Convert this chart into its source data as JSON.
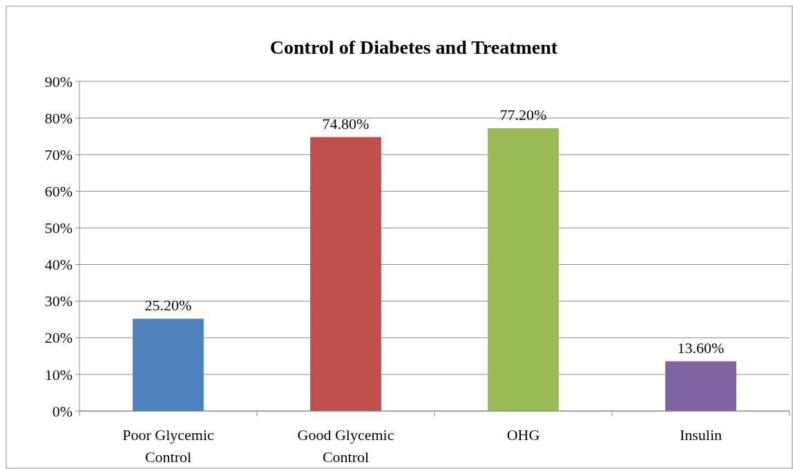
{
  "chart_data": {
    "type": "bar",
    "title": "Control of Diabetes and Treatment",
    "categories": [
      "Poor Glycemic Control",
      "Good Glycemic Control",
      "OHG",
      "Insulin"
    ],
    "values": [
      25.2,
      74.8,
      77.2,
      13.6
    ],
    "colors": [
      "#4f81bd",
      "#c0504d",
      "#9bbb59",
      "#8064a2"
    ],
    "value_labels": [
      "25.20%",
      "74.80%",
      "77.20%",
      "13.60%"
    ],
    "ylim": [
      0,
      90
    ],
    "yticks": [
      {
        "value": 0,
        "label": "0%"
      },
      {
        "value": 10,
        "label": "10%"
      },
      {
        "value": 20,
        "label": "20%"
      },
      {
        "value": 30,
        "label": "30%"
      },
      {
        "value": 40,
        "label": "40%"
      },
      {
        "value": 50,
        "label": "50%"
      },
      {
        "value": 60,
        "label": "60%"
      },
      {
        "value": 70,
        "label": "70%"
      },
      {
        "value": 80,
        "label": "80%"
      },
      {
        "value": 90,
        "label": "90%"
      }
    ],
    "grid": "y"
  }
}
